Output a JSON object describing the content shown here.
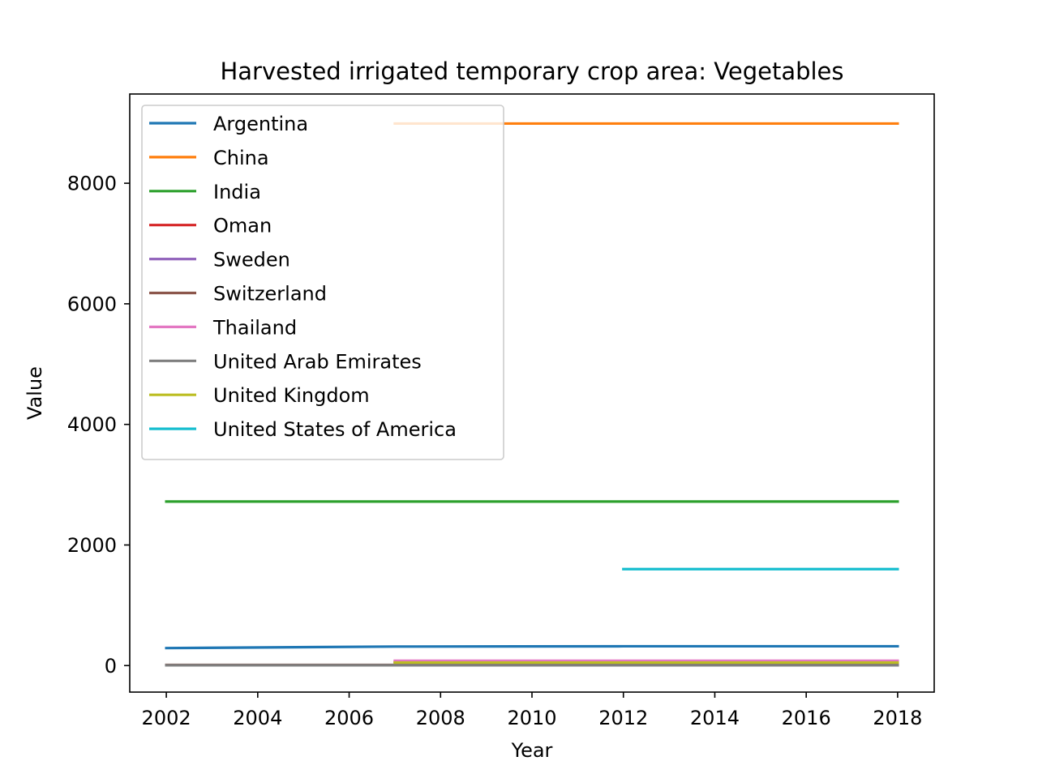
{
  "chart_data": {
    "type": "line",
    "title": "Harvested irrigated temporary crop area: Vegetables",
    "xlabel": "Year",
    "ylabel": "Value",
    "xlim": [
      2001.2,
      2018.8
    ],
    "ylim": [
      -440,
      9480
    ],
    "xticks": [
      2002,
      2004,
      2006,
      2008,
      2010,
      2012,
      2014,
      2016,
      2018
    ],
    "yticks": [
      0,
      2000,
      4000,
      6000,
      8000
    ],
    "grid": false,
    "legend_position": "upper left",
    "series": [
      {
        "name": "Argentina",
        "color": "#1f77b4",
        "x": [
          2002,
          2007,
          2012,
          2018
        ],
        "y": [
          290,
          315,
          320,
          320
        ]
      },
      {
        "name": "China",
        "color": "#ff7f0e",
        "x": [
          2007,
          2012,
          2018
        ],
        "y": [
          8990,
          8990,
          8990
        ]
      },
      {
        "name": "India",
        "color": "#2ca02c",
        "x": [
          2002,
          2007,
          2012,
          2018
        ],
        "y": [
          2720,
          2720,
          2720,
          2720
        ]
      },
      {
        "name": "Oman",
        "color": "#d62728",
        "x": [
          2007,
          2012,
          2018
        ],
        "y": [
          60,
          60,
          60
        ]
      },
      {
        "name": "Sweden",
        "color": "#9467bd",
        "x": [
          2007,
          2012,
          2018
        ],
        "y": [
          40,
          40,
          40
        ]
      },
      {
        "name": "Switzerland",
        "color": "#8c564b",
        "x": [
          2002,
          2007,
          2012,
          2018
        ],
        "y": [
          10,
          10,
          10,
          10
        ]
      },
      {
        "name": "Thailand",
        "color": "#e377c2",
        "x": [
          2007,
          2012,
          2018
        ],
        "y": [
          80,
          80,
          80
        ]
      },
      {
        "name": "United Arab Emirates",
        "color": "#7f7f7f",
        "x": [
          2002,
          2007,
          2012,
          2018
        ],
        "y": [
          5,
          5,
          5,
          5
        ]
      },
      {
        "name": "United Kingdom",
        "color": "#bcbd22",
        "x": [
          2007,
          2012,
          2018
        ],
        "y": [
          50,
          50,
          50
        ]
      },
      {
        "name": "United States of America",
        "color": "#17becf",
        "x": [
          2012,
          2018
        ],
        "y": [
          1600,
          1600
        ]
      }
    ]
  }
}
